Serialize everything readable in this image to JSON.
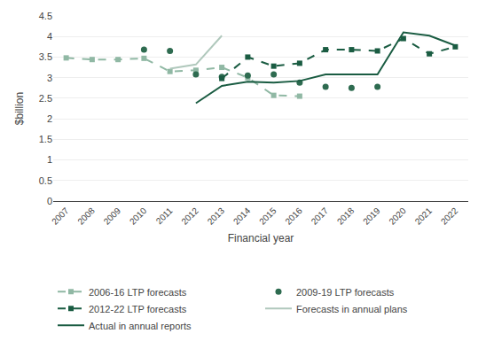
{
  "chart_data": {
    "type": "line",
    "x_title": "Financial year",
    "y_title": "$billion",
    "xlim": [
      2006.5,
      2022.5
    ],
    "xticks": [
      2007,
      2008,
      2009,
      2010,
      2011,
      2012,
      2013,
      2014,
      2015,
      2016,
      2017,
      2018,
      2019,
      2020,
      2021,
      2022
    ],
    "ylim": [
      0,
      4.5
    ],
    "yticks": [
      0,
      0.5,
      1,
      1.5,
      2,
      2.5,
      3,
      3.5,
      4,
      4.5
    ],
    "grid": "y",
    "legend": "bottom",
    "series": [
      {
        "name": "2006-16 LTP forecasts",
        "color": "#90b8a4",
        "marker": "square",
        "line_style": "dashed",
        "x": [
          2007,
          2008,
          2009,
          2010,
          2011,
          2012,
          2013,
          2014,
          2015,
          2016
        ],
        "values": [
          3.48,
          3.44,
          3.44,
          3.47,
          3.15,
          3.18,
          3.25,
          3.0,
          2.57,
          2.55
        ]
      },
      {
        "name": "2009-19 LTP forecasts",
        "color": "#2e6b50",
        "marker": "circle",
        "line_style": "none",
        "x": [
          2010,
          2011,
          2012,
          2013,
          2014,
          2015,
          2016,
          2017,
          2018,
          2019
        ],
        "values": [
          3.68,
          3.65,
          3.08,
          3.02,
          3.05,
          3.08,
          2.88,
          2.78,
          2.75,
          2.78
        ]
      },
      {
        "name": "2012-22 LTP forecasts",
        "color": "#1a5c42",
        "marker": "square",
        "line_style": "dashed",
        "x": [
          2013,
          2014,
          2015,
          2016,
          2017,
          2018,
          2019,
          2020,
          2021,
          2022
        ],
        "values": [
          2.98,
          3.5,
          3.28,
          3.35,
          3.68,
          3.68,
          3.65,
          3.95,
          3.58,
          3.75
        ]
      },
      {
        "name": "Forecasts in annual plans",
        "color": "#b0c8bc",
        "marker": "none",
        "line_style": "solid",
        "x": [
          2011,
          2012,
          2013
        ],
        "values": [
          3.22,
          3.32,
          4.02
        ]
      },
      {
        "name": "Actual in annual reports",
        "color": "#1a5c42",
        "marker": "none",
        "line_style": "solid",
        "x": [
          2012,
          2013,
          2014,
          2015,
          2016,
          2017,
          2018,
          2019,
          2020,
          2021,
          2022
        ],
        "values": [
          2.38,
          2.8,
          2.9,
          2.88,
          2.92,
          3.08,
          3.08,
          3.08,
          4.1,
          4.02,
          3.78
        ]
      }
    ]
  }
}
